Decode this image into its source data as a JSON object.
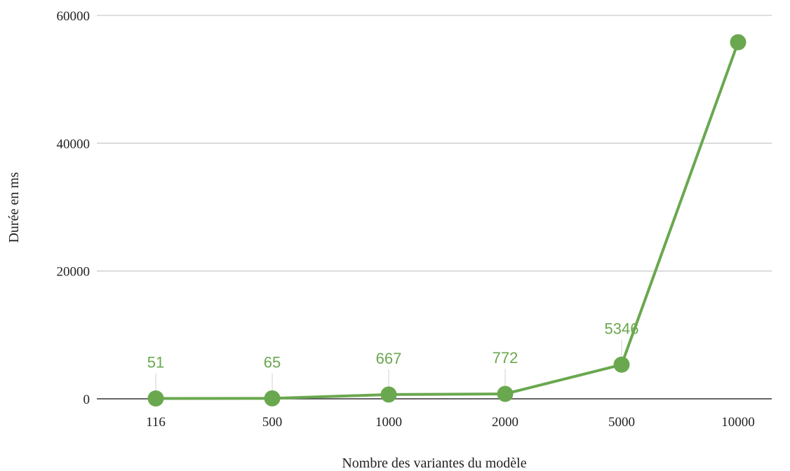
{
  "chart_data": {
    "type": "line",
    "title": "",
    "xlabel": "Nombre des variantes du modèle",
    "ylabel": "Durée en ms",
    "categories": [
      "116",
      "500",
      "1000",
      "2000",
      "5000",
      "10000"
    ],
    "series": [
      {
        "values": [
          51,
          65,
          667,
          772,
          5346,
          55800
        ],
        "data_labels": [
          "51",
          "65",
          "667",
          "772",
          "5346",
          ""
        ]
      }
    ],
    "ylim": [
      0,
      60000
    ],
    "yticks": [
      0,
      20000,
      40000,
      60000
    ],
    "ytick_labels": [
      "0",
      "20000",
      "40000",
      "60000"
    ],
    "grid": true,
    "legend": "none",
    "colors": {
      "series": "#6aa84f",
      "grid": "#cccccc",
      "axis": "#333333",
      "leader": "#d9d9d9"
    }
  }
}
